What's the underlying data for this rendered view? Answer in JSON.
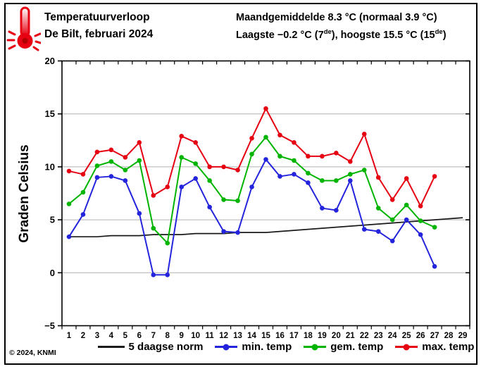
{
  "header": {
    "title": "Temperatuurverloop",
    "subtitle": "De Bilt, februari 2024",
    "stat_line1": "Maandgemiddelde 8.3 °C (normaal 3.9 °C)",
    "stat_line2_parts": {
      "p1": "Laagste −0.2 °C (7",
      "sup1": "de",
      "p2": "), hoogste 15.5 °C (15",
      "sup2": "de",
      "p3": ")"
    },
    "icon": "thermometer-hot-icon"
  },
  "footer": {
    "copyright": "© 2024, KNMI"
  },
  "chart_data": {
    "type": "line",
    "title": "Temperatuurverloop De Bilt, februari 2024",
    "ylabel": "Graden Celsius",
    "xlabel": "",
    "days": 29,
    "day_labels": [
      1,
      2,
      3,
      4,
      5,
      6,
      7,
      8,
      9,
      10,
      11,
      12,
      13,
      14,
      15,
      16,
      17,
      18,
      19,
      20,
      21,
      22,
      23,
      24,
      25,
      26,
      27,
      28,
      29
    ],
    "ylim": [
      -5,
      20
    ],
    "yticks": [
      -5,
      0,
      5,
      10,
      15,
      20
    ],
    "gridlines": [
      0,
      5,
      10,
      15
    ],
    "grid_color": "#b0b0b0",
    "axis_color": "#000000",
    "legend_position": "bottom",
    "series": [
      {
        "name": "5 daagse norm",
        "color": "#1a1a1a",
        "points": false,
        "values": [
          3.4,
          3.4,
          3.4,
          3.5,
          3.5,
          3.5,
          3.6,
          3.6,
          3.6,
          3.7,
          3.7,
          3.7,
          3.8,
          3.8,
          3.8,
          3.9,
          4.0,
          4.1,
          4.2,
          4.3,
          4.4,
          4.5,
          4.6,
          4.7,
          4.8,
          4.9,
          5.0,
          5.1,
          5.2
        ]
      },
      {
        "name": "min. temp",
        "color": "#2424dd",
        "points": true,
        "values": [
          3.4,
          5.5,
          9.0,
          9.1,
          8.7,
          5.6,
          -0.2,
          -0.2,
          8.1,
          8.9,
          6.2,
          3.9,
          3.8,
          8.1,
          10.7,
          9.1,
          9.3,
          8.5,
          6.1,
          5.9,
          8.7,
          4.1,
          3.9,
          3.0,
          5.0,
          3.6,
          0.6
        ]
      },
      {
        "name": "gem. temp",
        "color": "#00b400",
        "points": true,
        "values": [
          6.5,
          7.6,
          10.1,
          10.5,
          9.7,
          10.6,
          4.2,
          2.8,
          10.9,
          10.3,
          8.7,
          6.9,
          6.8,
          11.2,
          12.8,
          11.0,
          10.6,
          9.4,
          8.7,
          8.7,
          9.3,
          9.7,
          6.1,
          5.0,
          6.4,
          4.9,
          4.3
        ]
      },
      {
        "name": "max. temp",
        "color": "#e60012",
        "points": true,
        "values": [
          9.6,
          9.3,
          11.4,
          11.6,
          10.9,
          12.3,
          7.3,
          8.1,
          12.9,
          12.3,
          10.0,
          10.0,
          9.7,
          12.7,
          15.5,
          13.0,
          12.3,
          11.0,
          11.0,
          11.3,
          10.5,
          13.1,
          9.0,
          6.9,
          8.9,
          6.3,
          9.1
        ]
      }
    ]
  }
}
